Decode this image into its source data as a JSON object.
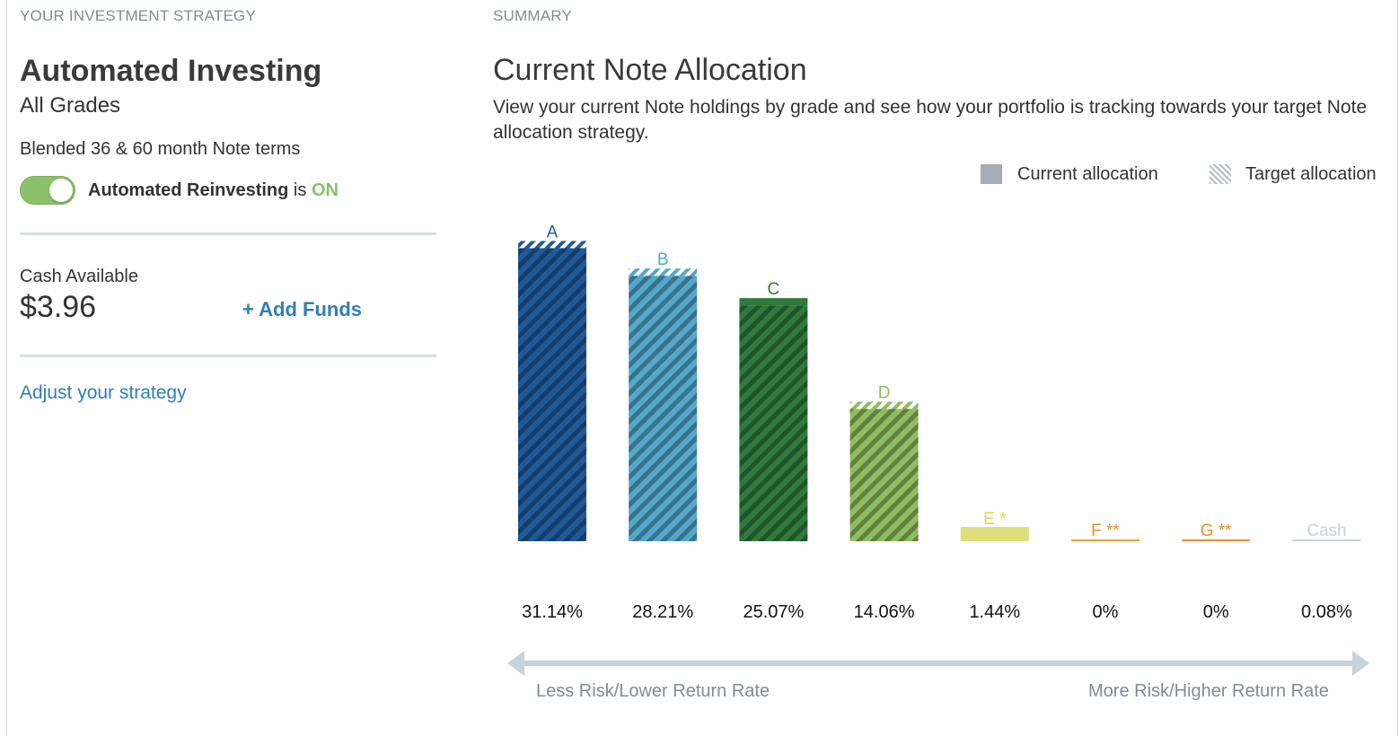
{
  "left_panel": {
    "section_label": "YOUR INVESTMENT STRATEGY",
    "strategy_name": "Automated Investing",
    "grades": "All Grades",
    "terms": "Blended 36 & 60 month Note terms",
    "reinvest_label": "Automated Reinvesting",
    "reinvest_is": "is",
    "reinvest_state": "ON",
    "cash_label": "Cash Available",
    "cash_value": "$3.96",
    "add_funds": "+ Add Funds",
    "adjust_link": "Adjust your strategy"
  },
  "summary": {
    "section_label": "SUMMARY",
    "title": "Current Note Allocation",
    "description": "View your current Note holdings by grade and see how your portfolio is tracking towards your target Note allocation strategy.",
    "legend": {
      "current": "Current allocation",
      "target": "Target allocation"
    },
    "axis_left": "Less Risk/Lower Return Rate",
    "axis_right": "More Risk/Higher Return Rate"
  },
  "chart_data": {
    "type": "bar",
    "categories": [
      "A",
      "B",
      "C",
      "D",
      "E *",
      "F **",
      "G **",
      "Cash"
    ],
    "series": [
      {
        "name": "Current allocation",
        "values": [
          31.14,
          28.21,
          25.07,
          14.06,
          1.44,
          0,
          0,
          0.08
        ]
      }
    ],
    "value_labels": [
      "31.14%",
      "28.21%",
      "25.07%",
      "14.06%",
      "1.44%",
      "0%",
      "0%",
      "0.08%"
    ],
    "colors": [
      "#1f5a9a",
      "#54a8cc",
      "#2f7a3c",
      "#8fbd5f",
      "#dde07a",
      "#f0a23a",
      "#e8902c",
      "#c8d2d8"
    ],
    "label_colors": [
      "#1f5a9a",
      "#54a8cc",
      "#2f7a3c",
      "#8fbd5f",
      "#e3d24a",
      "#e8902c",
      "#e8902c",
      "#c8d2d8"
    ],
    "ylim": [
      0,
      35
    ],
    "legend": "top-right",
    "grid": false
  }
}
